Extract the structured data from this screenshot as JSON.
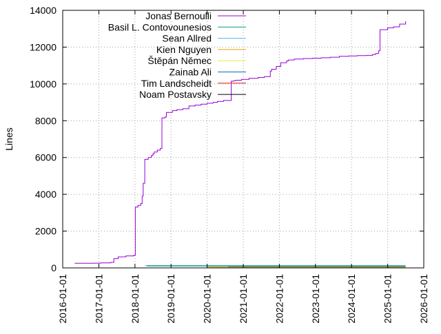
{
  "chart_data": {
    "type": "line",
    "title": "",
    "xlabel": "",
    "ylabel": "Lines",
    "x_ticks": [
      "2016-01-01",
      "2017-01-01",
      "2018-01-01",
      "2019-01-01",
      "2020-01-01",
      "2021-01-01",
      "2022-01-01",
      "2023-01-01",
      "2024-01-01",
      "2025-01-01",
      "2026-01-01"
    ],
    "y_ticks": [
      "0",
      "2000",
      "4000",
      "6000",
      "8000",
      "10000",
      "12000",
      "14000"
    ],
    "xlim": [
      "2016-01-01",
      "2026-01-01"
    ],
    "ylim": [
      0,
      14000
    ],
    "grid": true,
    "legend_position": "top-left",
    "series": [
      {
        "name": "Jonas Bernoulli",
        "color": "#9400d3",
        "step": true,
        "x": [
          "2016-05-01",
          "2016-11-15",
          "2017-01-20",
          "2017-05-01",
          "2017-06-01",
          "2017-07-15",
          "2017-10-01",
          "2017-12-20",
          "2018-01-05",
          "2018-02-01",
          "2018-03-01",
          "2018-03-15",
          "2018-03-25",
          "2018-04-10",
          "2018-05-15",
          "2018-06-15",
          "2018-07-01",
          "2018-07-15",
          "2018-08-15",
          "2018-09-15",
          "2018-10-01",
          "2018-11-01",
          "2018-11-15",
          "2019-01-15",
          "2019-03-01",
          "2019-05-01",
          "2019-07-01",
          "2019-09-01",
          "2019-11-01",
          "2020-01-01",
          "2020-03-01",
          "2020-04-15",
          "2020-06-15",
          "2020-09-01",
          "2020-09-25",
          "2020-10-15",
          "2020-12-15",
          "2021-03-01",
          "2021-06-01",
          "2021-08-01",
          "2021-10-01",
          "2021-10-15",
          "2021-12-01",
          "2022-01-15",
          "2022-03-15",
          "2022-04-01",
          "2022-06-01",
          "2022-09-01",
          "2022-12-01",
          "2023-03-01",
          "2023-06-01",
          "2023-09-01",
          "2023-12-01",
          "2024-03-01",
          "2024-06-01",
          "2024-08-01",
          "2024-09-01",
          "2024-10-01",
          "2024-10-15",
          "2025-01-01",
          "2025-03-01",
          "2025-05-01",
          "2025-07-01"
        ],
        "values": [
          250,
          260,
          270,
          300,
          500,
          600,
          650,
          680,
          3300,
          3400,
          3500,
          3900,
          4600,
          5900,
          6000,
          6100,
          6200,
          6300,
          6400,
          6500,
          8150,
          8200,
          8450,
          8550,
          8600,
          8650,
          8800,
          8850,
          8900,
          8950,
          9000,
          9050,
          9100,
          10150,
          10170,
          10200,
          10250,
          10300,
          10350,
          10400,
          10700,
          10800,
          10950,
          11150,
          11250,
          11300,
          11350,
          11380,
          11400,
          11420,
          11450,
          11500,
          11520,
          11540,
          11550,
          11600,
          11650,
          11800,
          12950,
          13050,
          13100,
          13250,
          13400
        ]
      },
      {
        "name": "Basil L. Contovounesios",
        "color": "#009e73",
        "step": true,
        "x": [
          "2018-05-01",
          "2025-07-01"
        ],
        "values": [
          100,
          100
        ]
      },
      {
        "name": "Sean Allred",
        "color": "#56b4e9",
        "step": true,
        "x": [
          "2018-04-15",
          "2025-07-01"
        ],
        "values": [
          130,
          130
        ]
      },
      {
        "name": "Kien Nguyen",
        "color": "#e69f00",
        "step": true,
        "x": [
          "2020-01-01",
          "2025-07-01"
        ],
        "values": [
          40,
          40
        ]
      },
      {
        "name": "Štěpán Němec",
        "color": "#f0e442",
        "step": true,
        "x": [
          "2020-04-01",
          "2025-07-01"
        ],
        "values": [
          20,
          20
        ]
      },
      {
        "name": "Zainab Ali",
        "color": "#0072b2",
        "step": true,
        "x": [
          "2020-08-01",
          "2025-07-01"
        ],
        "values": [
          60,
          60
        ]
      },
      {
        "name": "Tim Landscheidt",
        "color": "#e51e10",
        "step": true,
        "x": [
          "2020-11-01",
          "2025-07-01"
        ],
        "values": [
          10,
          10
        ]
      },
      {
        "name": "Noam Postavsky",
        "color": "#000000",
        "step": true,
        "x": [
          "2021-01-01",
          "2025-07-01"
        ],
        "values": [
          5,
          5
        ]
      }
    ]
  }
}
